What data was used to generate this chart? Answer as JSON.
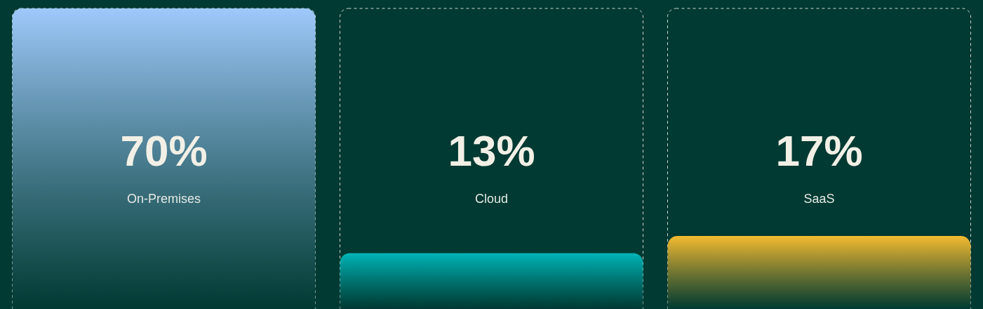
{
  "chart_data": {
    "type": "bar",
    "categories": [
      "On-Premises",
      "Cloud",
      "SaaS"
    ],
    "values": [
      70,
      13,
      17
    ],
    "colors": [
      "#9ec9fb",
      "#00b5b8",
      "#f5bb30"
    ],
    "value_labels": [
      "70%",
      "13%",
      "17%"
    ],
    "tick_labels": "x"
  }
}
